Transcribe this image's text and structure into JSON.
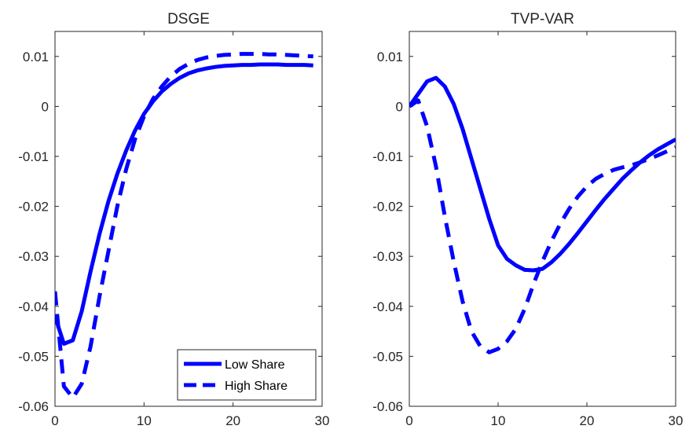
{
  "chart_data": [
    {
      "type": "line",
      "title": "DSGE",
      "xlabel": "",
      "ylabel": "",
      "xlim": [
        0,
        30
      ],
      "ylim": [
        -0.06,
        0.015
      ],
      "xticks": [
        0,
        10,
        20,
        30
      ],
      "xtick_labels": [
        "0",
        "10",
        "20",
        "30"
      ],
      "yticks": [
        0.01,
        0,
        -0.01,
        -0.02,
        -0.03,
        -0.04,
        -0.05,
        -0.06
      ],
      "ytick_labels": [
        "0.01",
        "0",
        "-0.01",
        "-0.02",
        "-0.03",
        "-0.04",
        "-0.05",
        "-0.06"
      ],
      "grid": false,
      "legend": {
        "placement": "bottom-right"
      },
      "series": [
        {
          "name": "Low Share",
          "style": "solid",
          "color": "#0000FF",
          "x": [
            0,
            1,
            2,
            3,
            4,
            5,
            6,
            7,
            8,
            9,
            10,
            11,
            12,
            13,
            14,
            15,
            16,
            17,
            18,
            19,
            20,
            21,
            22,
            23,
            24,
            25,
            26,
            27,
            28,
            29
          ],
          "y": [
            -0.042,
            -0.0475,
            -0.0468,
            -0.041,
            -0.033,
            -0.0255,
            -0.019,
            -0.0135,
            -0.0088,
            -0.0048,
            -0.0015,
            0.001,
            0.003,
            0.0045,
            0.0057,
            0.0066,
            0.0072,
            0.0076,
            0.0079,
            0.0081,
            0.0082,
            0.0083,
            0.0083,
            0.0084,
            0.0084,
            0.0084,
            0.0083,
            0.0083,
            0.0083,
            0.0082
          ]
        },
        {
          "name": "High Share",
          "style": "dashed",
          "color": "#0000FF",
          "x": [
            0,
            1,
            2,
            3,
            4,
            5,
            6,
            7,
            8,
            9,
            10,
            11,
            12,
            13,
            14,
            15,
            16,
            17,
            18,
            19,
            20,
            21,
            22,
            23,
            24,
            25,
            26,
            27,
            28,
            29
          ],
          "y": [
            -0.037,
            -0.056,
            -0.0583,
            -0.0555,
            -0.048,
            -0.038,
            -0.029,
            -0.02,
            -0.0125,
            -0.0065,
            -0.002,
            0.0015,
            0.004,
            0.006,
            0.0075,
            0.0085,
            0.0093,
            0.0098,
            0.0101,
            0.0103,
            0.0104,
            0.0105,
            0.0105,
            0.0105,
            0.0104,
            0.0104,
            0.0103,
            0.0102,
            0.0101,
            0.01
          ]
        }
      ]
    },
    {
      "type": "line",
      "title": "TVP-VAR",
      "xlabel": "",
      "ylabel": "",
      "xlim": [
        0,
        30
      ],
      "ylim": [
        -0.06,
        0.015
      ],
      "xticks": [
        0,
        10,
        20,
        30
      ],
      "xtick_labels": [
        "0",
        "10",
        "20",
        "30"
      ],
      "yticks": [
        0.01,
        0,
        -0.01,
        -0.02,
        -0.03,
        -0.04,
        -0.05,
        -0.06
      ],
      "ytick_labels": [
        "0.01",
        "0",
        "-0.01",
        "-0.02",
        "-0.03",
        "-0.04",
        "-0.05",
        "-0.06"
      ],
      "grid": false,
      "legend": null,
      "series": [
        {
          "style": "solid",
          "color": "#0000FF",
          "x": [
            0,
            1,
            2,
            3,
            4,
            5,
            6,
            7,
            8,
            9,
            10,
            11,
            12,
            13,
            14,
            15,
            16,
            17,
            18,
            19,
            20,
            21,
            22,
            23,
            24,
            25,
            26,
            27,
            28,
            29,
            30
          ],
          "y": [
            0.0,
            0.0025,
            0.005,
            0.0057,
            0.004,
            0.0005,
            -0.0045,
            -0.0105,
            -0.0165,
            -0.0225,
            -0.0278,
            -0.0305,
            -0.0318,
            -0.0327,
            -0.0328,
            -0.0325,
            -0.0312,
            -0.0295,
            -0.0275,
            -0.0253,
            -0.023,
            -0.0207,
            -0.0185,
            -0.0165,
            -0.0145,
            -0.0128,
            -0.0112,
            -0.0098,
            -0.0086,
            -0.0076,
            -0.0066
          ]
        },
        {
          "style": "dashed",
          "color": "#0000FF",
          "x": [
            0,
            1,
            2,
            3,
            4,
            5,
            6,
            7,
            8,
            9,
            10,
            11,
            12,
            13,
            14,
            15,
            16,
            17,
            18,
            19,
            20,
            21,
            22,
            23,
            24,
            25,
            26,
            27,
            28,
            29,
            30
          ],
          "y": [
            0.0,
            0.0012,
            -0.004,
            -0.012,
            -0.022,
            -0.031,
            -0.039,
            -0.045,
            -0.048,
            -0.0492,
            -0.0485,
            -0.047,
            -0.0445,
            -0.0405,
            -0.0355,
            -0.031,
            -0.027,
            -0.0235,
            -0.0205,
            -0.018,
            -0.016,
            -0.0145,
            -0.0135,
            -0.0127,
            -0.0122,
            -0.0118,
            -0.0112,
            -0.0105,
            -0.0098,
            -0.009,
            -0.0082
          ]
        }
      ]
    }
  ]
}
